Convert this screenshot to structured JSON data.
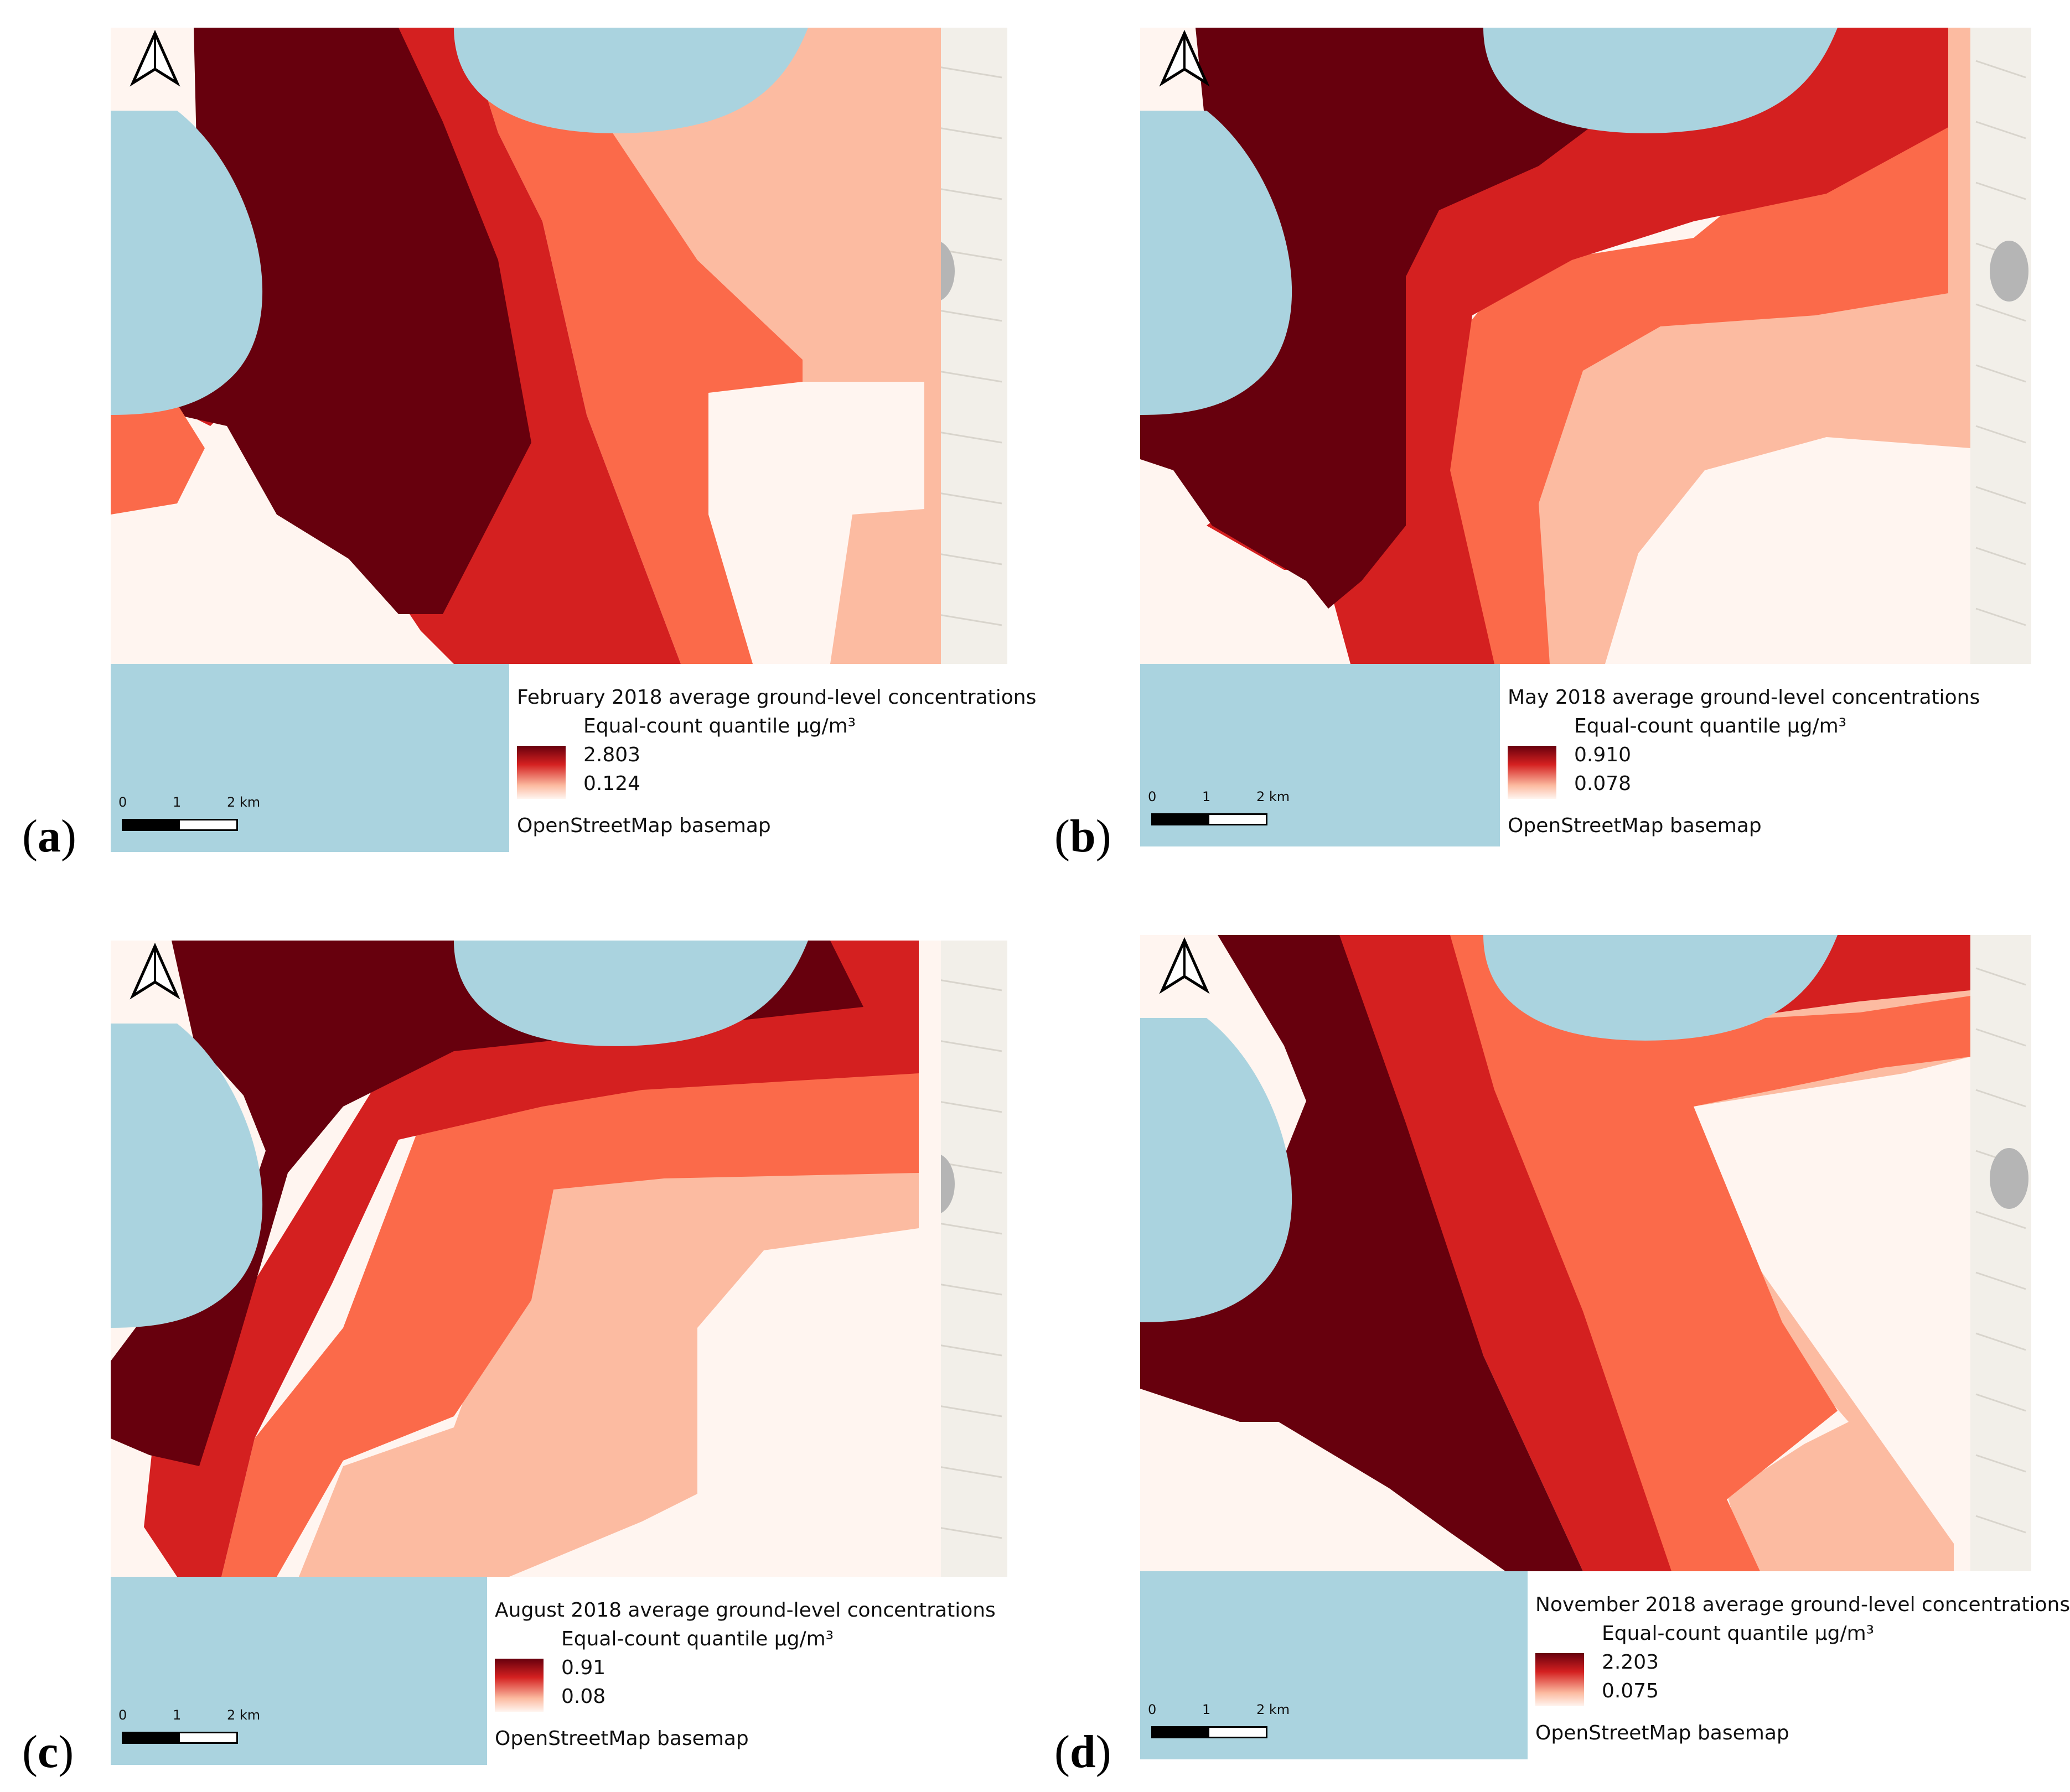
{
  "colors": {
    "sea": "#aad3df",
    "land": "#f2efe9",
    "class1": "#67000d",
    "class2": "#d42020",
    "class3": "#fb6a4a",
    "class4": "#fcbba1",
    "class5": "#fff5f0"
  },
  "common": {
    "scale_0": "0",
    "scale_1": "1",
    "scale_2": "2 km",
    "basemap": "OpenStreetMap basemap",
    "unit_line": "Equal-count quantile µg/m³",
    "north_arrow_icon": "north-arrow-icon"
  },
  "panels": [
    {
      "letter": "a",
      "title": "February 2018 average ground-level concentrations",
      "max": "2.803",
      "min": "0.124"
    },
    {
      "letter": "b",
      "title": "May 2018 average ground-level concentrations",
      "max": "0.910",
      "min": "0.078"
    },
    {
      "letter": "c",
      "title": "August 2018 average ground-level concentrations",
      "max": "0.91",
      "min": "0.08"
    },
    {
      "letter": "d",
      "title": "November 2018 average ground-level concentrations",
      "max": "2.203",
      "min": "0.075"
    }
  ]
}
